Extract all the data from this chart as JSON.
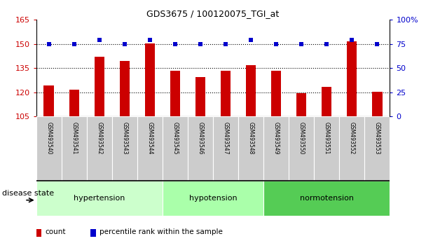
{
  "title": "GDS3675 / 100120075_TGI_at",
  "samples": [
    "GSM493540",
    "GSM493541",
    "GSM493542",
    "GSM493543",
    "GSM493544",
    "GSM493545",
    "GSM493546",
    "GSM493547",
    "GSM493548",
    "GSM493549",
    "GSM493550",
    "GSM493551",
    "GSM493552",
    "GSM493553"
  ],
  "counts": [
    124.5,
    121.5,
    142.0,
    139.5,
    150.5,
    133.5,
    129.5,
    133.5,
    137.0,
    133.5,
    119.5,
    123.5,
    151.5,
    120.5
  ],
  "percentiles": [
    75,
    75,
    79,
    75,
    79,
    75,
    75,
    75,
    79,
    75,
    75,
    75,
    79,
    75
  ],
  "ylim_left": [
    105,
    165
  ],
  "ylim_right": [
    0,
    100
  ],
  "yticks_left": [
    105,
    120,
    135,
    150,
    165
  ],
  "yticks_right": [
    0,
    25,
    50,
    75,
    100
  ],
  "gridlines": [
    120,
    135,
    150
  ],
  "groups": [
    {
      "label": "hypertension",
      "start": 0,
      "end": 5,
      "color": "#ccffcc"
    },
    {
      "label": "hypotension",
      "start": 5,
      "end": 9,
      "color": "#aaffaa"
    },
    {
      "label": "normotension",
      "start": 9,
      "end": 14,
      "color": "#55cc55"
    }
  ],
  "bar_color": "#cc0000",
  "dot_color": "#0000cc",
  "tick_label_color_left": "#cc0000",
  "tick_label_color_right": "#0000cc",
  "sample_box_color": "#cccccc",
  "disease_state_label": "disease state",
  "legend_count": "count",
  "legend_percentile": "percentile rank within the sample",
  "title_fontsize": 9,
  "ytick_fontsize": 8,
  "sample_fontsize": 5.5,
  "group_fontsize": 8,
  "legend_fontsize": 7.5,
  "ds_fontsize": 8
}
